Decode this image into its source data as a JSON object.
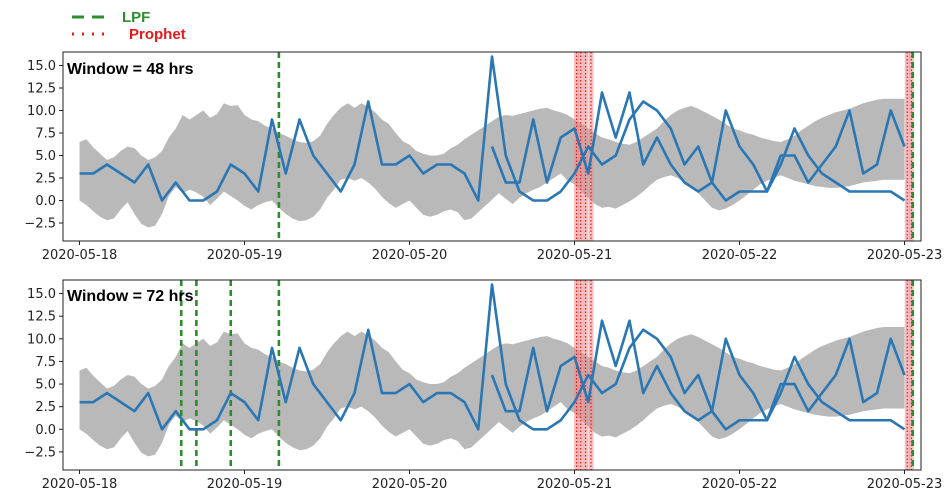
{
  "legend": [
    {
      "label": "LPF",
      "color": "#2e8b2e",
      "style": "dashed"
    },
    {
      "label": "Prophet",
      "color": "#e8191b",
      "style": "dotted"
    }
  ],
  "chart_data": [
    {
      "type": "line",
      "panel_label": "Window = 48 hrs",
      "x_ticks": [
        "2020-05-18",
        "2020-05-19",
        "2020-05-20",
        "2020-05-21",
        "2020-05-22",
        "2020-05-23"
      ],
      "y_ticks": [
        "−2.5",
        "0.0",
        "2.5",
        "5.0",
        "7.5",
        "10.0",
        "12.5",
        "15.0"
      ],
      "ylim": [
        -4.5,
        16.5
      ],
      "xlim_days": [
        -0.1,
        5.1
      ],
      "series": [
        {
          "color": "#2a77b4",
          "x_hours": [
            0,
            2,
            4,
            6,
            8,
            10,
            12,
            14,
            16,
            18,
            20,
            22,
            24,
            26,
            28,
            30,
            32,
            34,
            36,
            38,
            40,
            42,
            44,
            46,
            48,
            50,
            52,
            54,
            56,
            58,
            60,
            62,
            64,
            66,
            68,
            70,
            72,
            74,
            76,
            78,
            80,
            82,
            84,
            86,
            88,
            90,
            92,
            94,
            96,
            98,
            100,
            102,
            104,
            106,
            108,
            110,
            112,
            114,
            116,
            118,
            120
          ],
          "y": [
            3,
            3,
            4,
            3,
            2,
            4,
            0,
            2,
            0,
            0,
            1,
            4,
            3,
            1,
            9,
            3,
            9,
            5,
            3,
            1,
            4,
            11,
            4,
            4,
            5,
            3,
            4,
            4,
            3,
            0,
            16,
            5,
            1,
            0,
            0,
            1,
            3,
            6,
            4,
            5,
            9,
            11,
            10,
            8,
            4,
            6,
            2,
            10,
            6,
            4,
            1,
            4,
            8,
            5,
            3,
            2,
            1,
            1,
            1,
            1,
            0
          ]
        },
        {
          "color": "#2a77b4",
          "x_hours": [
            60,
            62,
            64,
            66,
            68,
            70,
            72,
            74,
            76,
            78,
            80,
            82,
            84,
            86,
            88,
            90,
            92,
            94,
            96,
            98,
            100,
            102,
            104,
            106,
            108,
            110,
            112,
            114,
            116,
            118,
            120
          ],
          "y": [
            6,
            2,
            2,
            9,
            2,
            7,
            8,
            3,
            12,
            7,
            12,
            4,
            7,
            4,
            2,
            1,
            2,
            0,
            1,
            1,
            1,
            5,
            5,
            2,
            4,
            6,
            10,
            3,
            4,
            10,
            6
          ]
        }
      ],
      "lpf_anomalies_hours": [
        29,
        121.2
      ],
      "prophet_anomalies_hours": [
        72.3,
        72.9,
        73.6,
        74.4,
        120.4,
        121.0
      ]
    },
    {
      "type": "line",
      "panel_label": "Window = 72 hrs",
      "x_ticks": [
        "2020-05-18",
        "2020-05-19",
        "2020-05-20",
        "2020-05-21",
        "2020-05-22",
        "2020-05-23"
      ],
      "y_ticks": [
        "−2.5",
        "0.0",
        "2.5",
        "5.0",
        "7.5",
        "10.0",
        "12.5",
        "15.0"
      ],
      "ylim": [
        -4.5,
        16.5
      ],
      "xlim_days": [
        -0.1,
        5.1
      ],
      "lpf_anomalies_hours": [
        14.8,
        17,
        22,
        29,
        121.2
      ],
      "prophet_anomalies_hours": [
        72.3,
        72.9,
        73.6,
        74.4,
        120.4,
        121.0
      ]
    }
  ]
}
